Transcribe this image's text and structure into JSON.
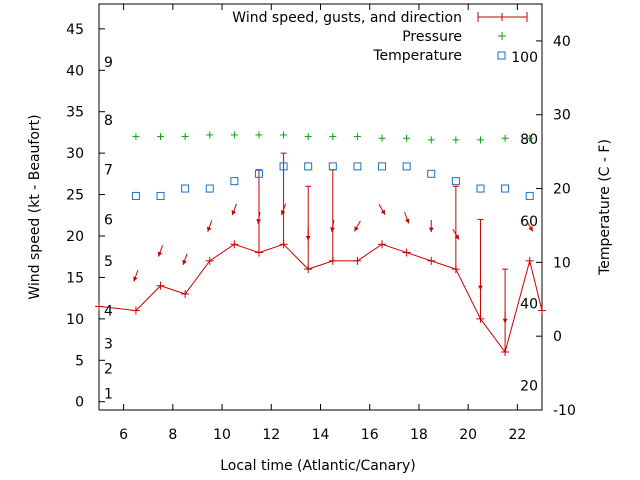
{
  "chart_data": {
    "type": "line",
    "xlabel": "Local time (Atlantic/Canary)",
    "ylabel": "Wind speed (kt - Beaufort)",
    "y2label": "Temperature (C - F)",
    "xlim": [
      5,
      23
    ],
    "ylim": [
      -1,
      48
    ],
    "y2lim": [
      -10,
      45
    ],
    "grid": false,
    "legend_position": "top-right",
    "x_ticks": [
      6,
      8,
      10,
      12,
      14,
      16,
      18,
      20,
      22
    ],
    "y_ticks": [
      0,
      5,
      10,
      15,
      20,
      25,
      30,
      35,
      40,
      45
    ],
    "y2_ticks": [
      -10,
      0,
      10,
      20,
      30,
      40
    ],
    "beaufort_labels": [
      {
        "text": "1",
        "y": 1
      },
      {
        "text": "2",
        "y": 4
      },
      {
        "text": "3",
        "y": 7
      },
      {
        "text": "4",
        "y": 11
      },
      {
        "text": "5",
        "y": 17
      },
      {
        "text": "6",
        "y": 22
      },
      {
        "text": "7",
        "y": 28
      },
      {
        "text": "8",
        "y": 34
      },
      {
        "text": "9",
        "y": 41
      }
    ],
    "fahrenheit_labels": [
      {
        "text": "20",
        "y2": -6.7
      },
      {
        "text": "40",
        "y2": 4.4
      },
      {
        "text": "60",
        "y2": 15.6
      },
      {
        "text": "80",
        "y2": 26.7
      },
      {
        "text": "100",
        "y2": 37.8
      }
    ],
    "series": [
      {
        "name": "Wind speed, gusts, and direction",
        "color": "#cc0000",
        "x": [
          5,
          6.5,
          7.5,
          8.5,
          9.5,
          10.5,
          11.5,
          12.5,
          13.5,
          14.5,
          15.5,
          16.5,
          17.5,
          18.5,
          19.5,
          20.5,
          21.5,
          22.5,
          23
        ],
        "speed": [
          11.5,
          11,
          14,
          13,
          17,
          19,
          18,
          19,
          16,
          17,
          17,
          19,
          18,
          17,
          16,
          10,
          6,
          17,
          11
        ],
        "gust": [
          null,
          null,
          null,
          null,
          null,
          null,
          28,
          30,
          26,
          28,
          null,
          null,
          null,
          null,
          26,
          22,
          16,
          null,
          null
        ],
        "direction_deg": [
          null,
          20,
          20,
          20,
          20,
          20,
          10,
          20,
          0,
          10,
          30,
          330,
          340,
          0,
          330,
          0,
          0,
          330,
          null
        ]
      },
      {
        "name": "Pressure",
        "color": "#00aa00",
        "x": [
          6.5,
          7.5,
          8.5,
          9.5,
          10.5,
          11.5,
          12.5,
          13.5,
          14.5,
          15.5,
          16.5,
          17.5,
          18.5,
          19.5,
          20.5,
          21.5,
          22.5
        ],
        "y": [
          32,
          32,
          32,
          32.2,
          32.2,
          32.2,
          32.2,
          32,
          32,
          32,
          31.8,
          31.8,
          31.6,
          31.6,
          31.6,
          31.8,
          31.8
        ]
      },
      {
        "name": "Temperature",
        "color": "#1e6fbf",
        "x": [
          6.5,
          7.5,
          8.5,
          9.5,
          10.5,
          11.5,
          12.5,
          13.5,
          14.5,
          15.5,
          16.5,
          17.5,
          18.5,
          19.5,
          20.5,
          21.5,
          22.5
        ],
        "y2": [
          19,
          19,
          20,
          20,
          21,
          22,
          23,
          23,
          23,
          23,
          23,
          23,
          22,
          21,
          20,
          20,
          19
        ]
      }
    ]
  }
}
